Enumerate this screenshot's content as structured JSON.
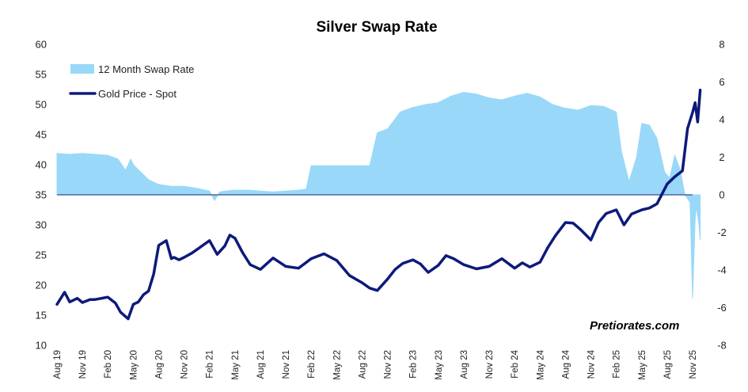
{
  "chart_data": {
    "type": "line",
    "title": "Silver Swap Rate",
    "watermark": "Pretiorates.com",
    "x_labels": [
      "Aug 19",
      "Nov 19",
      "Feb 20",
      "May 20",
      "Aug 20",
      "Nov 20",
      "Feb 21",
      "May 21",
      "Aug 21",
      "Nov 21",
      "Feb 22",
      "May 22",
      "Aug 22",
      "Nov 22",
      "Feb 23",
      "May 23",
      "Aug 23",
      "Nov 23",
      "Feb 24",
      "May 24",
      "Aug 24",
      "Nov 24",
      "Feb 25",
      "May 25",
      "Aug 25",
      "Nov 25"
    ],
    "y_left": {
      "min": 10,
      "max": 60,
      "step": 5,
      "ticks": [
        "10",
        "15",
        "20",
        "25",
        "30",
        "35",
        "40",
        "45",
        "50",
        "55",
        "60"
      ]
    },
    "y_right": {
      "min": -8,
      "max": 8,
      "step": 2,
      "ticks": [
        "-8",
        "-6",
        "-4",
        "-2",
        "0",
        "2",
        "4",
        "6",
        "8"
      ]
    },
    "colors": {
      "swap": "#99d8f8",
      "gold": "#0d1a7a",
      "baseline": "#3b4a8c"
    },
    "series": [
      {
        "name": "12 Month Swap Rate",
        "axis": "right",
        "style": "area",
        "x": [
          0,
          0.5,
          1,
          1.5,
          2,
          2.4,
          2.7,
          2.9,
          3,
          3.3,
          3.6,
          4,
          4.5,
          5,
          5.5,
          6,
          6.2,
          6.4,
          6.6,
          7,
          7.5,
          8,
          8.5,
          9,
          9.5,
          9.8,
          10,
          10.5,
          11,
          11.5,
          12,
          12.3,
          12.6,
          13,
          13.5,
          14,
          14.5,
          15,
          15.5,
          16,
          16.5,
          17,
          17.5,
          18,
          18.5,
          19,
          19.5,
          20,
          20.5,
          21,
          21.5,
          22,
          22.2,
          22.5,
          22.8,
          23,
          23.3,
          23.6,
          23.9,
          24.1,
          24.3,
          24.5,
          24.7,
          24.9,
          25,
          25.1,
          25.15,
          25.25,
          25.3
        ],
        "values": [
          2.2,
          2.15,
          2.2,
          2.15,
          2.1,
          1.9,
          1.3,
          1.9,
          1.6,
          1.2,
          0.8,
          0.55,
          0.45,
          0.45,
          0.35,
          0.2,
          -0.3,
          0.15,
          0.2,
          0.25,
          0.25,
          0.2,
          0.15,
          0.2,
          0.25,
          0.3,
          1.55,
          1.55,
          1.55,
          1.55,
          1.55,
          1.55,
          3.3,
          3.5,
          4.4,
          4.65,
          4.8,
          4.9,
          5.25,
          5.45,
          5.35,
          5.15,
          5.05,
          5.25,
          5.4,
          5.2,
          4.8,
          4.6,
          4.5,
          4.75,
          4.7,
          4.4,
          2.3,
          0.7,
          2.0,
          3.8,
          3.7,
          3.0,
          1.2,
          0.9,
          2.1,
          1.4,
          0,
          -0.4,
          -5.5,
          -1.3,
          -0.6,
          -1.6,
          -2.4
        ]
      },
      {
        "name": "Gold Price - Spot",
        "axis": "left",
        "style": "line",
        "x": [
          0,
          0.3,
          0.5,
          0.8,
          1,
          1.3,
          1.5,
          2,
          2.3,
          2.5,
          2.8,
          3,
          3.2,
          3.4,
          3.6,
          3.8,
          4,
          4.3,
          4.5,
          4.6,
          4.8,
          5,
          5.3,
          5.6,
          6,
          6.3,
          6.6,
          6.8,
          7,
          7.3,
          7.6,
          8,
          8.5,
          9,
          9.5,
          10,
          10.5,
          11,
          11.5,
          12,
          12.3,
          12.6,
          13,
          13.3,
          13.6,
          14,
          14.3,
          14.6,
          15,
          15.3,
          15.6,
          16,
          16.5,
          17,
          17.5,
          18,
          18.3,
          18.6,
          19,
          19.3,
          19.6,
          20,
          20.3,
          20.6,
          21,
          21.3,
          21.6,
          22,
          22.3,
          22.6,
          23,
          23.3,
          23.6,
          24,
          24.3,
          24.6,
          24.8,
          25,
          25.1,
          25.2,
          25.3
        ],
        "values": [
          16.8,
          18.8,
          17.2,
          17.8,
          17.1,
          17.6,
          17.6,
          18.0,
          17.0,
          15.5,
          14.4,
          16.8,
          17.2,
          18.4,
          19.0,
          21.8,
          26.6,
          27.4,
          24.4,
          24.6,
          24.2,
          24.6,
          25.3,
          26.2,
          27.4,
          25.1,
          26.5,
          28.3,
          27.8,
          25.4,
          23.4,
          22.6,
          24.5,
          23.1,
          22.8,
          24.4,
          25.2,
          24.1,
          21.6,
          20.4,
          19.5,
          19.1,
          21.0,
          22.6,
          23.6,
          24.2,
          23.5,
          22.1,
          23.3,
          24.9,
          24.4,
          23.4,
          22.7,
          23.1,
          24.4,
          22.8,
          23.7,
          23.0,
          23.8,
          26.2,
          28.2,
          30.4,
          30.3,
          29.2,
          27.5,
          30.4,
          31.9,
          32.5,
          30.0,
          31.8,
          32.5,
          32.8,
          33.5,
          36.8,
          38.0,
          39.0,
          46.0,
          48.7,
          50.3,
          47.1,
          52.4
        ]
      }
    ],
    "legend": [
      {
        "label": "12 Month Swap Rate",
        "kind": "area"
      },
      {
        "label": "Gold Price - Spot",
        "kind": "line"
      }
    ]
  }
}
